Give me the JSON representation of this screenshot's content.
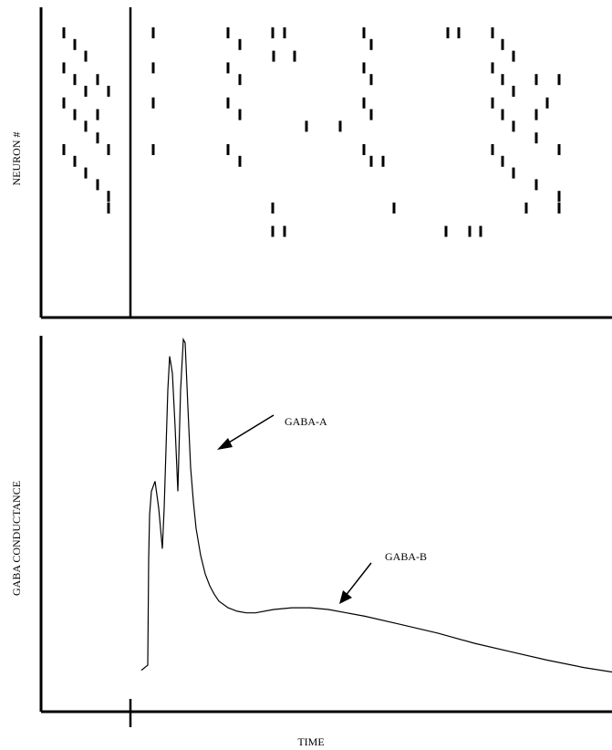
{
  "chart_data": [
    {
      "type": "scatter",
      "subtype": "raster",
      "ylabel": "NEURON #",
      "xlabel": "",
      "spike_rows": [
        {
          "row": 1,
          "times": [
            70,
            168,
            250,
            299,
            312,
            399,
            491,
            503,
            540
          ]
        },
        {
          "row": 2,
          "times": [
            82,
            263,
            407,
            551
          ]
        },
        {
          "row": 3,
          "times": [
            94,
            300,
            323,
            563
          ]
        },
        {
          "row": 4,
          "times": [
            70,
            168,
            250,
            399,
            540
          ]
        },
        {
          "row": 5,
          "times": [
            82,
            107,
            263,
            407,
            551,
            588,
            613
          ]
        },
        {
          "row": 6,
          "times": [
            94,
            119,
            563
          ]
        },
        {
          "row": 7,
          "times": [
            70,
            168,
            250,
            399,
            540,
            600
          ]
        },
        {
          "row": 8,
          "times": [
            82,
            107,
            263,
            407,
            551,
            588
          ]
        },
        {
          "row": 9,
          "times": [
            94,
            336,
            373,
            563
          ]
        },
        {
          "row": 10,
          "times": [
            107,
            588
          ]
        },
        {
          "row": 11,
          "times": [
            70,
            119,
            168,
            250,
            399,
            540,
            613
          ]
        },
        {
          "row": 12,
          "times": [
            82,
            263,
            407,
            420,
            551
          ]
        },
        {
          "row": 13,
          "times": [
            94,
            563
          ]
        },
        {
          "row": 14,
          "times": [
            107,
            588
          ]
        },
        {
          "row": 15,
          "times": [
            119,
            613
          ]
        },
        {
          "row": 16,
          "times": [
            119,
            299,
            432,
            577,
            613
          ]
        },
        {
          "row": 18,
          "times": [
            299,
            312,
            489,
            515,
            527
          ]
        }
      ],
      "stimulus_time": 143
    },
    {
      "type": "line",
      "ylabel": "GABA CONDUCTANCE",
      "xlabel": "TIME",
      "series": [
        {
          "x": [
            155,
            162,
            163,
            164,
            166,
            170,
            174,
            178,
            180,
            184,
            186,
            189,
            192,
            195,
            198,
            201,
            203,
            206,
            209,
            212,
            215,
            220,
            225,
            230,
            235,
            240,
            250,
            260,
            270,
            280,
            300,
            320,
            340,
            360,
            380,
            400,
            440,
            480,
            520,
            560,
            600,
            640,
            671
          ],
          "y": [
            0.02,
            0.035,
            0.35,
            0.48,
            0.55,
            0.58,
            0.5,
            0.38,
            0.5,
            0.85,
            0.95,
            0.9,
            0.74,
            0.55,
            0.85,
            1.0,
            0.99,
            0.8,
            0.62,
            0.52,
            0.44,
            0.36,
            0.305,
            0.27,
            0.245,
            0.225,
            0.205,
            0.195,
            0.19,
            0.19,
            0.2,
            0.205,
            0.205,
            0.2,
            0.19,
            0.18,
            0.155,
            0.13,
            0.1,
            0.075,
            0.05,
            0.028,
            0.015
          ]
        }
      ],
      "annotations": [
        {
          "text": "GABA-A"
        },
        {
          "text": "GABA-B"
        }
      ],
      "stimulus_time": 143
    }
  ]
}
